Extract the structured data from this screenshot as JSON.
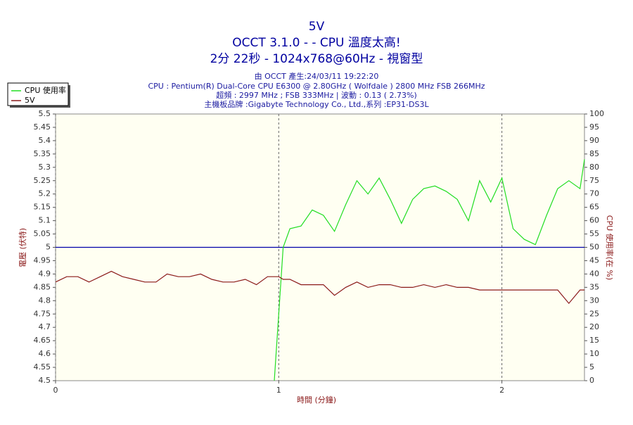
{
  "chart_data": {
    "type": "line",
    "title": "5V",
    "subtitles": [
      "OCCT 3.1.0 -  - CPU 溫度太高!",
      "2分 22秒 - 1024x768@60Hz - 視窗型"
    ],
    "info": [
      "由 OCCT 產生:24/03/11 19:22:20",
      "CPU : Pentium(R) Dual-Core CPU E6300 @ 2.80GHz ( Wolfdale ) 2800 MHz FSB 266MHz",
      "超頻 : 2997 MHz ; FSB 333MHz | 波動 : 0.13 ( 2.73%)",
      "主機板品牌 :Gigabyte Technology Co., Ltd.,系列 :EP31-DS3L"
    ],
    "xlabel": "時間 (分鐘)",
    "ylabel": "電壓 (伏特)",
    "y2label": "CPU 使用率(在 %)",
    "x": [
      0,
      0.05,
      0.1,
      0.15,
      0.2,
      0.25,
      0.3,
      0.35,
      0.4,
      0.45,
      0.5,
      0.55,
      0.6,
      0.65,
      0.7,
      0.75,
      0.8,
      0.85,
      0.9,
      0.95,
      0.98,
      1.0,
      1.02,
      1.05,
      1.1,
      1.15,
      1.2,
      1.25,
      1.3,
      1.35,
      1.4,
      1.45,
      1.5,
      1.55,
      1.6,
      1.65,
      1.7,
      1.75,
      1.8,
      1.85,
      1.9,
      1.95,
      2.0,
      2.05,
      2.1,
      2.15,
      2.2,
      2.25,
      2.3,
      2.35,
      2.37
    ],
    "series": [
      {
        "name": "CPU 使用率",
        "color": "#22dd22",
        "axis": "y2",
        "values": [
          null,
          null,
          null,
          null,
          null,
          null,
          null,
          null,
          null,
          null,
          null,
          null,
          null,
          null,
          null,
          null,
          null,
          null,
          null,
          null,
          0,
          25,
          50,
          57,
          58,
          64,
          62,
          56,
          66,
          75,
          70,
          76,
          68,
          59,
          68,
          72,
          73,
          71,
          68,
          60,
          75,
          67,
          76,
          57,
          53,
          51,
          62,
          72,
          75,
          72,
          83
        ]
      },
      {
        "name": "5V",
        "color": "#8b1a1a",
        "values": [
          4.87,
          4.89,
          4.89,
          4.87,
          4.89,
          4.91,
          4.89,
          4.88,
          4.87,
          4.87,
          4.9,
          4.89,
          4.89,
          4.9,
          4.88,
          4.87,
          4.87,
          4.88,
          4.86,
          4.89,
          4.89,
          4.89,
          4.88,
          4.88,
          4.86,
          4.86,
          4.86,
          4.82,
          4.85,
          4.87,
          4.85,
          4.86,
          4.86,
          4.85,
          4.85,
          4.86,
          4.85,
          4.86,
          4.85,
          4.85,
          4.84,
          4.84,
          4.84,
          4.84,
          4.84,
          4.84,
          4.84,
          4.84,
          4.79,
          4.84,
          4.84
        ]
      }
    ],
    "reference_line": {
      "value": 5,
      "color": "#0000aa"
    },
    "xlim": [
      0,
      2.37
    ],
    "xticks": [
      0,
      1,
      2
    ],
    "ylim": [
      4.5,
      5.5
    ],
    "yticks": [
      4.5,
      4.55,
      4.6,
      4.65,
      4.7,
      4.75,
      4.8,
      4.85,
      4.9,
      4.95,
      5,
      5.05,
      5.1,
      5.15,
      5.2,
      5.25,
      5.3,
      5.35,
      5.4,
      5.45,
      5.5
    ],
    "y2lim": [
      0,
      100
    ],
    "y2ticks": [
      0,
      5,
      10,
      15,
      20,
      25,
      30,
      35,
      40,
      45,
      50,
      55,
      60,
      65,
      70,
      75,
      80,
      85,
      90,
      95,
      100
    ],
    "grid": "x",
    "legend": "top-left"
  }
}
